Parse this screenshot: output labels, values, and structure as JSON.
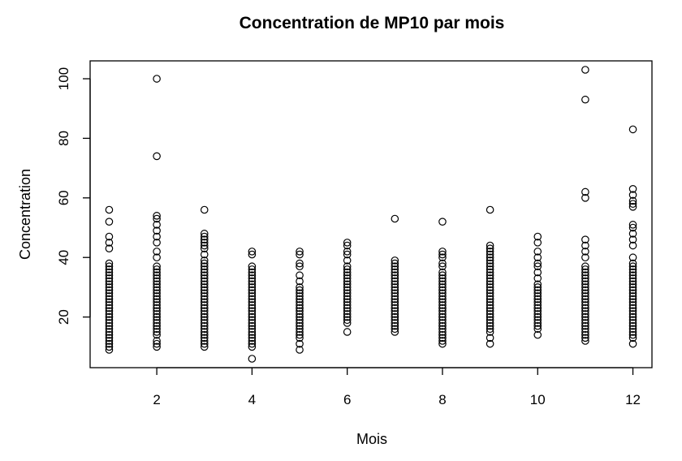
{
  "chart_data": {
    "type": "scatter",
    "title": "Concentration de MP10 par mois",
    "xlabel": "Mois",
    "ylabel": "Concentration",
    "xlim": [
      0.6,
      12.4
    ],
    "ylim": [
      3,
      106
    ],
    "x_ticks": [
      2,
      4,
      6,
      8,
      10,
      12
    ],
    "y_ticks": [
      20,
      40,
      60,
      80,
      100
    ],
    "grid": false,
    "legend": "none",
    "marker": "open-circle",
    "points_by_month": [
      {
        "x": 1,
        "y": [
          9,
          10,
          11,
          12,
          13,
          14,
          15,
          16,
          17,
          18,
          19,
          20,
          21,
          22,
          23,
          24,
          25,
          26,
          27,
          28,
          29,
          30,
          31,
          32,
          33,
          34,
          35,
          36,
          37,
          38,
          43,
          45,
          47,
          52,
          56
        ]
      },
      {
        "x": 2,
        "y": [
          10,
          11,
          12,
          14,
          15,
          16,
          17,
          18,
          19,
          20,
          21,
          22,
          23,
          24,
          25,
          26,
          27,
          28,
          29,
          30,
          31,
          32,
          33,
          34,
          35,
          36,
          37,
          40,
          42,
          45,
          47,
          49,
          51,
          53,
          54,
          74,
          100
        ]
      },
      {
        "x": 3,
        "y": [
          10,
          11,
          12,
          13,
          14,
          15,
          16,
          17,
          18,
          19,
          20,
          21,
          22,
          23,
          24,
          25,
          26,
          27,
          28,
          29,
          30,
          31,
          32,
          33,
          34,
          35,
          36,
          37,
          38,
          39,
          41,
          43,
          44,
          45,
          46,
          47,
          48,
          56
        ]
      },
      {
        "x": 4,
        "y": [
          6,
          10,
          11,
          12,
          13,
          14,
          15,
          16,
          17,
          18,
          19,
          20,
          21,
          22,
          23,
          24,
          25,
          26,
          27,
          28,
          29,
          30,
          31,
          32,
          33,
          34,
          35,
          36,
          37,
          41,
          42
        ]
      },
      {
        "x": 5,
        "y": [
          9,
          11,
          13,
          14,
          15,
          16,
          17,
          18,
          19,
          20,
          21,
          22,
          23,
          24,
          25,
          26,
          27,
          28,
          29,
          30,
          32,
          34,
          37,
          38,
          41,
          42
        ]
      },
      {
        "x": 6,
        "y": [
          15,
          18,
          19,
          20,
          21,
          22,
          23,
          24,
          25,
          26,
          27,
          28,
          29,
          30,
          31,
          32,
          33,
          34,
          35,
          36,
          37,
          39,
          41,
          42,
          44,
          45
        ]
      },
      {
        "x": 7,
        "y": [
          15,
          16,
          17,
          18,
          19,
          20,
          21,
          22,
          23,
          24,
          25,
          26,
          27,
          28,
          29,
          30,
          31,
          32,
          33,
          34,
          35,
          36,
          37,
          38,
          39,
          53
        ]
      },
      {
        "x": 8,
        "y": [
          11,
          12,
          13,
          14,
          15,
          16,
          17,
          18,
          19,
          20,
          21,
          22,
          23,
          24,
          25,
          26,
          27,
          28,
          29,
          30,
          31,
          32,
          33,
          34,
          35,
          37,
          38,
          40,
          41,
          42,
          52
        ]
      },
      {
        "x": 9,
        "y": [
          11,
          13,
          15,
          16,
          17,
          18,
          19,
          20,
          21,
          22,
          23,
          24,
          25,
          26,
          27,
          28,
          29,
          30,
          31,
          32,
          33,
          34,
          35,
          36,
          37,
          38,
          39,
          40,
          41,
          42,
          43,
          44,
          56
        ]
      },
      {
        "x": 10,
        "y": [
          14,
          16,
          17,
          18,
          19,
          20,
          21,
          22,
          23,
          24,
          25,
          26,
          27,
          28,
          29,
          30,
          31,
          33,
          35,
          37,
          38,
          40,
          42,
          45,
          47
        ]
      },
      {
        "x": 11,
        "y": [
          12,
          13,
          14,
          15,
          16,
          17,
          18,
          19,
          20,
          21,
          22,
          23,
          24,
          25,
          26,
          27,
          28,
          29,
          30,
          31,
          32,
          33,
          34,
          35,
          36,
          37,
          40,
          42,
          44,
          46,
          60,
          62,
          93,
          103
        ]
      },
      {
        "x": 12,
        "y": [
          11,
          13,
          14,
          15,
          16,
          17,
          18,
          19,
          20,
          21,
          22,
          23,
          24,
          25,
          26,
          27,
          28,
          29,
          30,
          31,
          32,
          33,
          34,
          35,
          36,
          37,
          38,
          40,
          44,
          46,
          48,
          50,
          51,
          57,
          58,
          59,
          61,
          63,
          83
        ]
      }
    ]
  }
}
